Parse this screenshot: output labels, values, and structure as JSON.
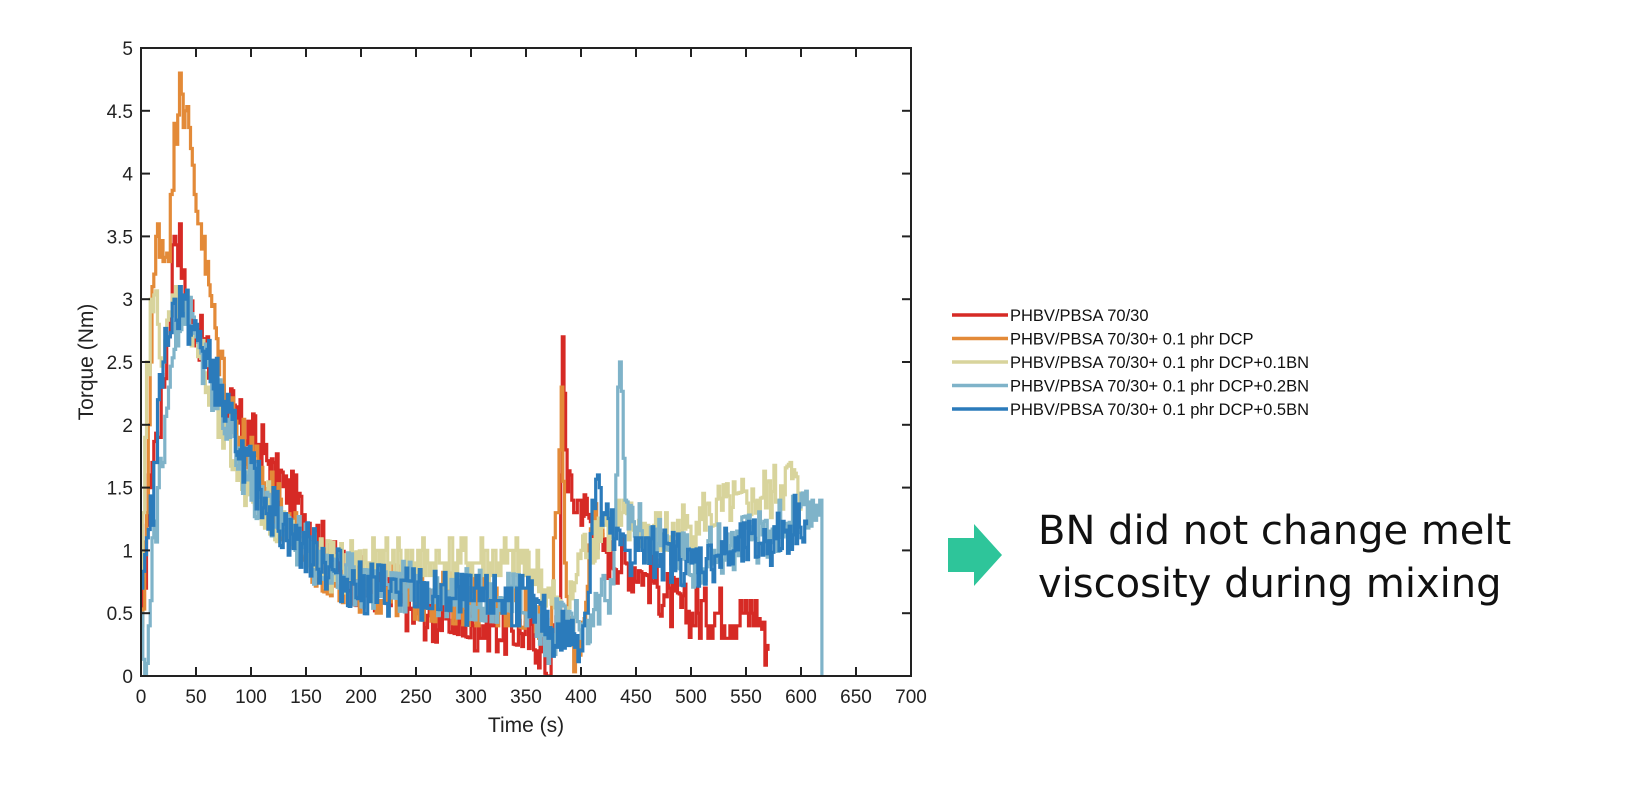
{
  "chart_data": {
    "type": "line",
    "xlabel": "Time (s)",
    "ylabel": "Torque (Nm)",
    "xlim": [
      0,
      700
    ],
    "ylim": [
      0,
      5
    ],
    "xticks": [
      0,
      50,
      100,
      150,
      200,
      250,
      300,
      350,
      400,
      450,
      500,
      550,
      600,
      650,
      700
    ],
    "yticks": [
      0,
      0.5,
      1,
      1.5,
      2,
      2.5,
      3,
      3.5,
      4,
      4.5,
      5
    ],
    "ytick_labels": [
      "0",
      "0.5",
      "1",
      "1.5",
      "2",
      "2.5",
      "3",
      "3.5",
      "4",
      "4.5",
      "5"
    ],
    "grid": false,
    "legend_position": "right",
    "series": [
      {
        "name": "PHBV/PBSA 70/30",
        "color": "#d62a25",
        "x": [
          0,
          5,
          10,
          15,
          20,
          25,
          30,
          35,
          40,
          50,
          60,
          70,
          80,
          90,
          100,
          110,
          120,
          140,
          160,
          180,
          200,
          220,
          250,
          280,
          300,
          320,
          340,
          360,
          370,
          380,
          383,
          386,
          390,
          395,
          400,
          410,
          420,
          440,
          460,
          480,
          500,
          520,
          540,
          560,
          570
        ],
        "y": [
          0.3,
          1.2,
          1.8,
          2.0,
          2.3,
          2.8,
          3.6,
          3.4,
          3.0,
          2.8,
          2.5,
          2.3,
          2.1,
          2.0,
          1.9,
          1.8,
          1.6,
          1.4,
          1.1,
          0.8,
          0.75,
          0.7,
          0.5,
          0.45,
          0.4,
          0.4,
          0.35,
          0.3,
          0.05,
          0.5,
          2.7,
          1.8,
          1.4,
          1.4,
          1.4,
          1.2,
          1.0,
          0.9,
          0.8,
          0.6,
          0.5,
          0.5,
          0.5,
          0.5,
          0.2
        ]
      },
      {
        "name": "PHBV/PBSA 70/30+ 0.1 phr DCP",
        "color": "#e38a38",
        "x": [
          0,
          5,
          10,
          15,
          20,
          25,
          30,
          35,
          40,
          45,
          50,
          55,
          60,
          70,
          80,
          90,
          100,
          120,
          140,
          160,
          180,
          200,
          220,
          250,
          300,
          340,
          360,
          370,
          375,
          380,
          382,
          385,
          390,
          395,
          400,
          410,
          420
        ],
        "y": [
          0.2,
          1.5,
          3.0,
          3.6,
          3.4,
          3.5,
          4.2,
          4.9,
          4.4,
          4.2,
          3.8,
          3.5,
          3.2,
          2.6,
          2.2,
          1.9,
          1.7,
          1.4,
          1.1,
          0.9,
          0.8,
          0.7,
          0.7,
          0.65,
          0.6,
          0.6,
          0.55,
          0.2,
          0.9,
          1.8,
          2.3,
          0.8,
          0.3,
          0.2,
          0.3,
          1.2,
          1.1
        ]
      },
      {
        "name": "PHBV/PBSA 70/30+ 0.1 phr DCP+0.1BN",
        "color": "#d8d49c",
        "x": [
          0,
          5,
          10,
          15,
          20,
          25,
          30,
          40,
          50,
          60,
          70,
          80,
          90,
          100,
          120,
          140,
          160,
          180,
          200,
          250,
          300,
          350,
          360,
          370,
          380,
          390,
          400,
          410,
          420,
          440,
          460,
          480,
          500,
          520,
          540,
          560,
          580,
          590,
          600
        ],
        "y": [
          0.6,
          2.4,
          3.0,
          2.8,
          2.6,
          2.8,
          3.0,
          3.0,
          2.7,
          2.3,
          2.0,
          1.8,
          1.6,
          1.5,
          1.3,
          1.1,
          0.9,
          0.85,
          0.9,
          0.9,
          0.9,
          0.9,
          0.8,
          0.6,
          0.5,
          0.55,
          1.0,
          1.1,
          1.2,
          1.2,
          1.1,
          1.1,
          1.2,
          1.3,
          1.35,
          1.4,
          1.5,
          1.6,
          1.4
        ]
      },
      {
        "name": "PHBV/PBSA 70/30+ 0.1 phr DCP+0.2BN",
        "color": "#7fb3c9",
        "x": [
          0,
          5,
          10,
          15,
          20,
          25,
          30,
          40,
          50,
          60,
          70,
          80,
          100,
          120,
          140,
          160,
          180,
          200,
          250,
          300,
          350,
          370,
          380,
          390,
          395,
          400,
          410,
          420,
          425,
          430,
          435,
          440,
          450,
          460,
          480,
          500,
          520,
          540,
          560,
          580,
          600,
          610,
          617,
          619
        ],
        "y": [
          0.3,
          0.1,
          1.0,
          1.4,
          1.8,
          2.3,
          2.8,
          2.9,
          2.7,
          2.4,
          2.2,
          1.9,
          1.5,
          1.3,
          1.1,
          0.9,
          0.8,
          0.75,
          0.7,
          0.65,
          0.6,
          0.2,
          0.5,
          0.4,
          0.5,
          0.3,
          0.4,
          0.6,
          0.6,
          1.1,
          2.6,
          1.3,
          1.2,
          1.1,
          1.0,
          0.9,
          1.0,
          1.05,
          1.1,
          1.2,
          1.25,
          1.3,
          1.4,
          0.0
        ]
      },
      {
        "name": "PHBV/PBSA 70/30+ 0.1 phr DCP+0.5BN",
        "color": "#2b7bbb",
        "x": [
          0,
          5,
          10,
          15,
          20,
          25,
          30,
          35,
          40,
          50,
          60,
          70,
          80,
          90,
          100,
          120,
          140,
          160,
          180,
          200,
          250,
          300,
          340,
          350,
          360,
          370,
          380,
          390,
          400,
          405,
          410,
          415,
          420,
          440,
          460,
          480,
          500,
          520,
          540,
          560,
          580,
          600,
          605
        ],
        "y": [
          0.5,
          1.2,
          1.4,
          2.0,
          2.6,
          2.8,
          2.9,
          3.0,
          2.9,
          2.7,
          2.5,
          2.3,
          2.0,
          1.8,
          1.6,
          1.3,
          1.1,
          0.95,
          0.8,
          0.7,
          0.65,
          0.6,
          0.6,
          0.6,
          0.5,
          0.4,
          0.3,
          0.35,
          0.3,
          0.6,
          1.4,
          1.5,
          1.2,
          1.0,
          1.0,
          0.95,
          0.9,
          0.95,
          1.0,
          1.05,
          1.1,
          1.3,
          1.2
        ]
      }
    ]
  },
  "callout": {
    "text": "BN did not change melt\nviscosity during mixing",
    "arrow_color": "#2ec59a",
    "icon": "right-arrow-icon"
  }
}
